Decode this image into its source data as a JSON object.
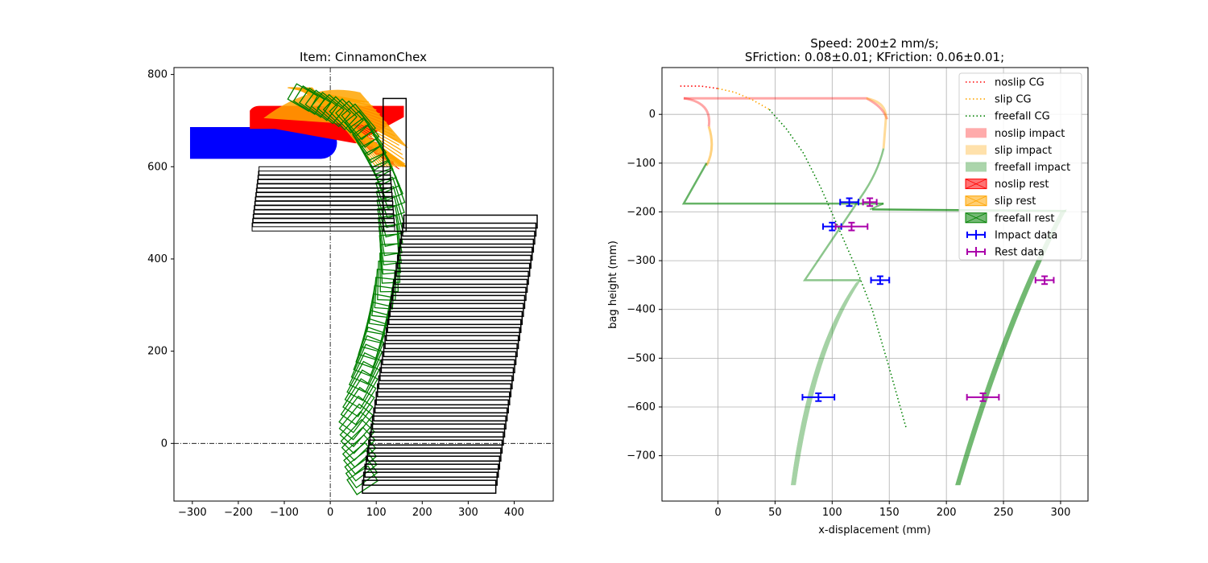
{
  "chart_data": [
    {
      "type": "scatter",
      "title": "Item: CinnamonChex",
      "xlabel": "",
      "ylabel": "",
      "xlim": [
        -340,
        485
      ],
      "ylim": [
        -125,
        815
      ],
      "xticks": [
        -300,
        -200,
        -100,
        0,
        100,
        200,
        300,
        400
      ],
      "yticks": [
        0,
        200,
        400,
        600,
        800
      ],
      "grid": false,
      "reference_lines": {
        "x": 0,
        "y": 0
      },
      "shapes": {
        "blue_block": {
          "color": "#0000ff",
          "x": [
            -305,
            -20
          ],
          "y": [
            617,
            686
          ],
          "rounded_end_x": 0
        },
        "red_block": {
          "color": "#ff0000",
          "x": [
            -175,
            160
          ],
          "y": [
            682,
            732
          ]
        },
        "orange_fan": {
          "color": "#ffa500",
          "pivot": [
            -40,
            775
          ],
          "reach": [
            170,
            600
          ]
        },
        "green_sweep": {
          "color": "#008000",
          "path": [
            [
              -60,
              750
            ],
            [
              60,
              700
            ],
            [
              130,
              560
            ],
            [
              130,
              380
            ],
            [
              90,
              220
            ],
            [
              55,
              60
            ],
            [
              70,
              -80
            ]
          ]
        },
        "black_tall_box": {
          "color": "#000000",
          "x": [
            115,
            165
          ],
          "y": [
            460,
            748
          ]
        },
        "black_upper_stack": {
          "color": "#000000",
          "x_left": [
            -170,
            -155
          ],
          "x_right": [
            130,
            140
          ],
          "y": [
            478,
            600
          ],
          "count": 14
        },
        "black_lower_stack": {
          "color": "#000000",
          "x_left": [
            70,
            160
          ],
          "x_right": [
            360,
            450
          ],
          "y": [
            -80,
            495
          ],
          "count": 34
        }
      }
    },
    {
      "type": "line",
      "title": "Speed: 200±2 mm/s;",
      "subtitle": "SFriction: 0.08±0.01; KFriction: 0.06±0.01;",
      "xlabel": "x-displacement (mm)",
      "ylabel": "bag height (mm)",
      "xlim": [
        -49,
        324
      ],
      "ylim": [
        -793,
        96
      ],
      "xticks": [
        0,
        50,
        100,
        150,
        200,
        250,
        300
      ],
      "yticks": [
        0,
        -100,
        -200,
        -300,
        -400,
        -500,
        -600,
        -700
      ],
      "grid": true,
      "legend_position": "upper-right",
      "series": [
        {
          "name": "noslip CG",
          "style": "dotted",
          "color": "#ff0000",
          "points": [
            [
              -33,
              58
            ],
            [
              -15,
              58
            ],
            [
              0,
              53
            ]
          ]
        },
        {
          "name": "slip CG",
          "style": "dotted",
          "color": "#ffa500",
          "points": [
            [
              0,
              53
            ],
            [
              15,
              45
            ],
            [
              30,
              30
            ],
            [
              45,
              10
            ]
          ]
        },
        {
          "name": "freefall CG",
          "style": "dotted",
          "color": "#008000",
          "points": [
            [
              45,
              10
            ],
            [
              60,
              -30
            ],
            [
              75,
              -80
            ],
            [
              90,
              -150
            ],
            [
              105,
              -230
            ],
            [
              120,
              -310
            ],
            [
              135,
              -400
            ],
            [
              150,
              -520
            ],
            [
              165,
              -645
            ]
          ]
        },
        {
          "name": "noslip impact",
          "style": "band",
          "color": "#ff0000",
          "points": [
            [
              -30,
              33
            ],
            [
              130,
              33
            ],
            [
              145,
              15
            ],
            [
              148,
              -10
            ]
          ]
        },
        {
          "name": "slip impact",
          "style": "band",
          "color": "#ffa500",
          "points": [
            [
              -8,
              15
            ],
            [
              -2,
              -25
            ],
            [
              -4,
              -70
            ],
            [
              -10,
              -105
            ],
            [
              148,
              15
            ],
            [
              146,
              -70
            ]
          ]
        },
        {
          "name": "freefall impact",
          "style": "band",
          "color": "#008000",
          "points": [
            [
              -10,
              -100
            ],
            [
              -30,
              -183
            ],
            [
              145,
              -183
            ],
            [
              140,
              -120
            ],
            [
              76,
              -340
            ],
            [
              125,
              -340
            ],
            [
              100,
              -480
            ],
            [
              65,
              -760
            ]
          ]
        },
        {
          "name": "noslip rest",
          "style": "band",
          "color": "#ff0000",
          "points": []
        },
        {
          "name": "slip rest",
          "style": "band",
          "color": "#ffa500",
          "points": []
        },
        {
          "name": "freefall rest",
          "style": "band",
          "color": "#008000",
          "points": [
            [
              135,
              -195
            ],
            [
              305,
              -198
            ],
            [
              275,
              -340
            ],
            [
              240,
              -510
            ],
            [
              210,
              -760
            ]
          ]
        },
        {
          "name": "Impact data",
          "style": "errorbar",
          "color": "#0000ff",
          "points": [
            [
              115,
              -180,
              8,
              8
            ],
            [
              100,
              -230,
              8,
              8
            ],
            [
              142,
              -340,
              8,
              8
            ],
            [
              88,
              -580,
              14,
              8
            ]
          ]
        },
        {
          "name": "Rest data",
          "style": "errorbar",
          "color": "#aa00aa",
          "points": [
            [
              133,
              -180,
              6,
              8
            ],
            [
              117,
              -230,
              14,
              8
            ],
            [
              286,
              -340,
              8,
              8
            ],
            [
              232,
              -580,
              14,
              8
            ]
          ]
        }
      ]
    }
  ]
}
